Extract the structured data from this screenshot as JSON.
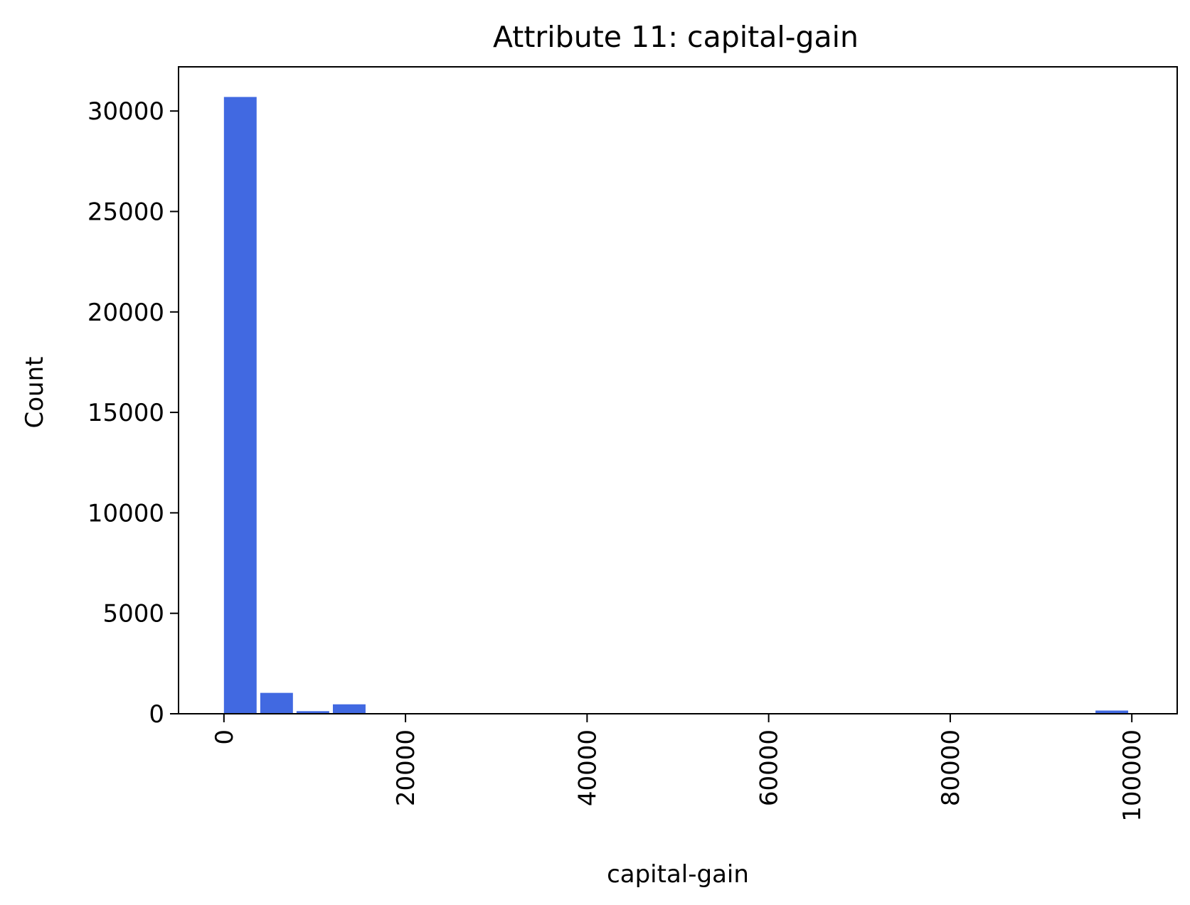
{
  "chart_data": {
    "type": "bar",
    "title": "Attribute 11: capital-gain",
    "xlabel": "capital-gain",
    "ylabel": "Count",
    "bar_color": "#4169e1",
    "grid": false,
    "xlim": [
      -4999.95,
      104999.0
    ],
    "ylim": [
      0,
      32200
    ],
    "x_ticks": [
      0,
      20000,
      40000,
      60000,
      80000,
      100000
    ],
    "x_tick_labels": [
      "0",
      "20000",
      "40000",
      "60000",
      "80000",
      "100000"
    ],
    "y_ticks": [
      0,
      5000,
      10000,
      15000,
      20000,
      25000,
      30000
    ],
    "y_tick_labels": [
      "0",
      "5000",
      "10000",
      "15000",
      "20000",
      "25000",
      "30000"
    ],
    "bins": [
      {
        "x0": 0,
        "x1": 3999.96,
        "value": 30700
      },
      {
        "x0": 4000,
        "x1": 7999.96,
        "value": 1040
      },
      {
        "x0": 8000,
        "x1": 11999.96,
        "value": 130
      },
      {
        "x0": 12000,
        "x1": 15999.96,
        "value": 470
      },
      {
        "x0": 16000,
        "x1": 19999.96,
        "value": 15
      },
      {
        "x0": 20000,
        "x1": 23999.96,
        "value": 15
      },
      {
        "x0": 24000,
        "x1": 27999.96,
        "value": 10
      },
      {
        "x0": 28000,
        "x1": 31999.96,
        "value": 5
      },
      {
        "x0": 32000,
        "x1": 35999.96,
        "value": 5
      },
      {
        "x0": 36000,
        "x1": 39999.96,
        "value": 0
      },
      {
        "x0": 40000,
        "x1": 43999.96,
        "value": 2
      },
      {
        "x0": 44000,
        "x1": 47999.96,
        "value": 0
      },
      {
        "x0": 48000,
        "x1": 51999.96,
        "value": 0
      },
      {
        "x0": 52000,
        "x1": 55999.96,
        "value": 0
      },
      {
        "x0": 56000,
        "x1": 59999.96,
        "value": 0
      },
      {
        "x0": 60000,
        "x1": 63999.96,
        "value": 0
      },
      {
        "x0": 64000,
        "x1": 67999.96,
        "value": 0
      },
      {
        "x0": 68000,
        "x1": 71999.96,
        "value": 0
      },
      {
        "x0": 72000,
        "x1": 75999.96,
        "value": 0
      },
      {
        "x0": 76000,
        "x1": 79999.96,
        "value": 0
      },
      {
        "x0": 80000,
        "x1": 83999.96,
        "value": 0
      },
      {
        "x0": 84000,
        "x1": 87999.96,
        "value": 0
      },
      {
        "x0": 88000,
        "x1": 91999.96,
        "value": 0
      },
      {
        "x0": 92000,
        "x1": 95999.96,
        "value": 0
      },
      {
        "x0": 96000,
        "x1": 99999,
        "value": 160
      }
    ]
  }
}
